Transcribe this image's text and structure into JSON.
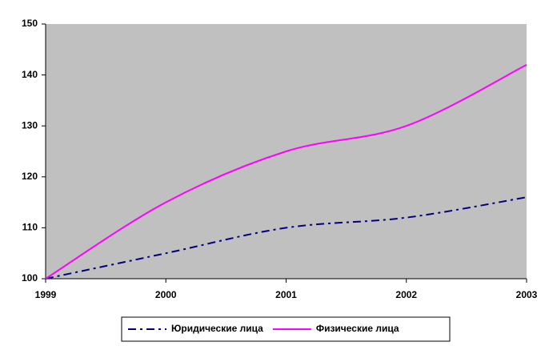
{
  "chart_data": {
    "type": "line",
    "x": [
      1999,
      2000,
      2001,
      2002,
      2003
    ],
    "xlim": [
      1999,
      2003
    ],
    "xticks": [
      1999,
      2000,
      2001,
      2002,
      2003
    ],
    "ylim": [
      100,
      150
    ],
    "yticks": [
      100,
      110,
      120,
      130,
      140,
      150
    ],
    "plot_background": "#c0c0c0",
    "legend": "bottom",
    "series": [
      {
        "name": "Юридические лица",
        "color": "#000080",
        "dash": "dashdot",
        "values": [
          100,
          105,
          110,
          112,
          116
        ]
      },
      {
        "name": "Физические лица",
        "color": "#ff00ff",
        "dash": "solid",
        "values": [
          100,
          115,
          125,
          130,
          142
        ]
      }
    ]
  }
}
